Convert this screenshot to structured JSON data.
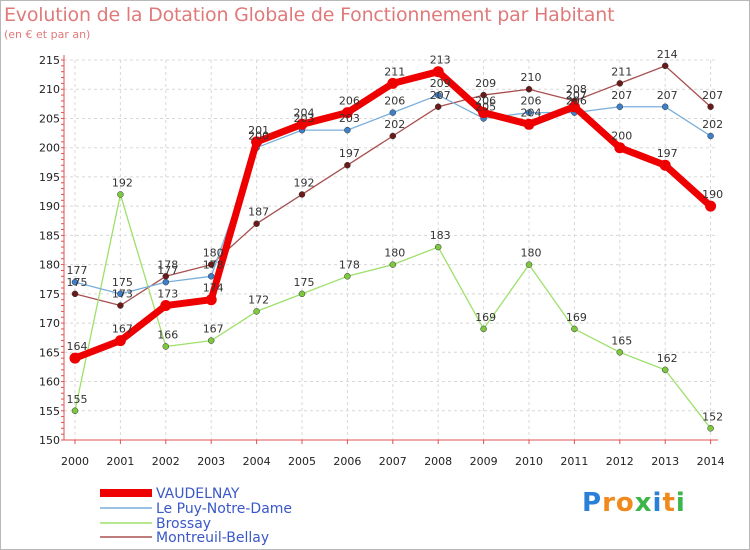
{
  "header": {
    "title": "Evolution de la Dotation Globale de Fonctionnement par Habitant",
    "subtitle": "(en € et par an)"
  },
  "chart_data": {
    "type": "line",
    "title": "Evolution de la Dotation Globale de Fonctionnement par Habitant",
    "subtitle": "(en € et par an)",
    "xlabel": "",
    "ylabel": "",
    "ylim": [
      150,
      215
    ],
    "yticks": [
      "150",
      "155",
      "160",
      "165",
      "170",
      "175",
      "180",
      "185",
      "190",
      "195",
      "200",
      "205",
      "210",
      "215"
    ],
    "x": [
      "2000",
      "2001",
      "2002",
      "2003",
      "2004",
      "2005",
      "2006",
      "2007",
      "2008",
      "2009",
      "2010",
      "2011",
      "2012",
      "2013",
      "2014"
    ],
    "grid": true,
    "legend_position": "bottom-left",
    "series": [
      {
        "name": "VAUDELNAY",
        "color": "#ee0000",
        "marker": "#ee0000",
        "width": "thick",
        "values": [
          164,
          167,
          173,
          174,
          201,
          204,
          206,
          211,
          213,
          206,
          204,
          207,
          200,
          197,
          190
        ]
      },
      {
        "name": "Le Puy-Notre-Dame",
        "color": "#7aaedb",
        "marker": "#3d7fc8",
        "width": "thin",
        "values": [
          177,
          175,
          177,
          178,
          200,
          203,
          203,
          206,
          209,
          205,
          206,
          206,
          207,
          207,
          202
        ]
      },
      {
        "name": "Brossay",
        "color": "#9ee06a",
        "marker": "#7ec840",
        "width": "thin",
        "values": [
          155,
          192,
          166,
          167,
          172,
          175,
          178,
          180,
          183,
          169,
          180,
          169,
          165,
          162,
          152
        ]
      },
      {
        "name": "Montreuil-Bellay",
        "color": "#a85050",
        "marker": "#6b1a1a",
        "width": "thin",
        "values": [
          175,
          173,
          178,
          180,
          187,
          192,
          197,
          202,
          207,
          209,
          210,
          208,
          211,
          214,
          207
        ]
      }
    ]
  },
  "legend": {
    "items": [
      "VAUDELNAY",
      "Le Puy-Notre-Dame",
      "Brossay",
      "Montreuil-Bellay"
    ]
  },
  "logo": {
    "letters": [
      "P",
      "r",
      "o",
      "x",
      "i",
      "t",
      "i"
    ],
    "colors": [
      "#2a7fd6",
      "#f08a1c",
      "#f08a1c",
      "#3cb54a",
      "#2a7fd6",
      "#f08a1c",
      "#3cb54a"
    ]
  }
}
